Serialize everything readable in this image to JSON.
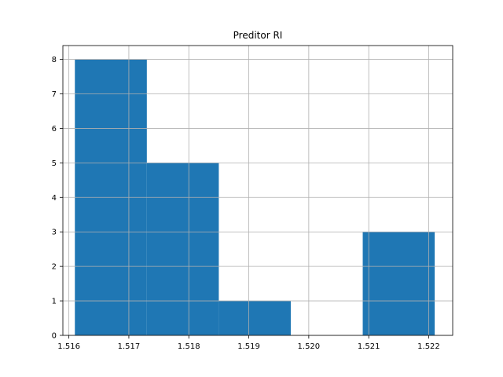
{
  "chart_data": {
    "type": "bar",
    "title": "Preditor RI",
    "xlabel": "",
    "ylabel": "",
    "xlim": [
      1.5159,
      1.5224
    ],
    "ylim": [
      0,
      8.4
    ],
    "grid": true,
    "bar_color": "#1f77b4",
    "bins": [
      {
        "x0": 1.5161,
        "x1": 1.5173,
        "value": 8
      },
      {
        "x0": 1.5173,
        "x1": 1.5185,
        "value": 5
      },
      {
        "x0": 1.5185,
        "x1": 1.5197,
        "value": 1
      },
      {
        "x0": 1.5197,
        "x1": 1.5209,
        "value": 0
      },
      {
        "x0": 1.5209,
        "x1": 1.5221,
        "value": 3
      }
    ],
    "xticks": [
      {
        "value": 1.516,
        "label": "1.516"
      },
      {
        "value": 1.517,
        "label": "1.517"
      },
      {
        "value": 1.518,
        "label": "1.518"
      },
      {
        "value": 1.519,
        "label": "1.519"
      },
      {
        "value": 1.52,
        "label": "1.520"
      },
      {
        "value": 1.521,
        "label": "1.521"
      },
      {
        "value": 1.522,
        "label": "1.522"
      }
    ],
    "yticks": [
      {
        "value": 0,
        "label": "0"
      },
      {
        "value": 1,
        "label": "1"
      },
      {
        "value": 2,
        "label": "2"
      },
      {
        "value": 3,
        "label": "3"
      },
      {
        "value": 4,
        "label": "4"
      },
      {
        "value": 5,
        "label": "5"
      },
      {
        "value": 6,
        "label": "6"
      },
      {
        "value": 7,
        "label": "7"
      },
      {
        "value": 8,
        "label": "8"
      }
    ]
  }
}
